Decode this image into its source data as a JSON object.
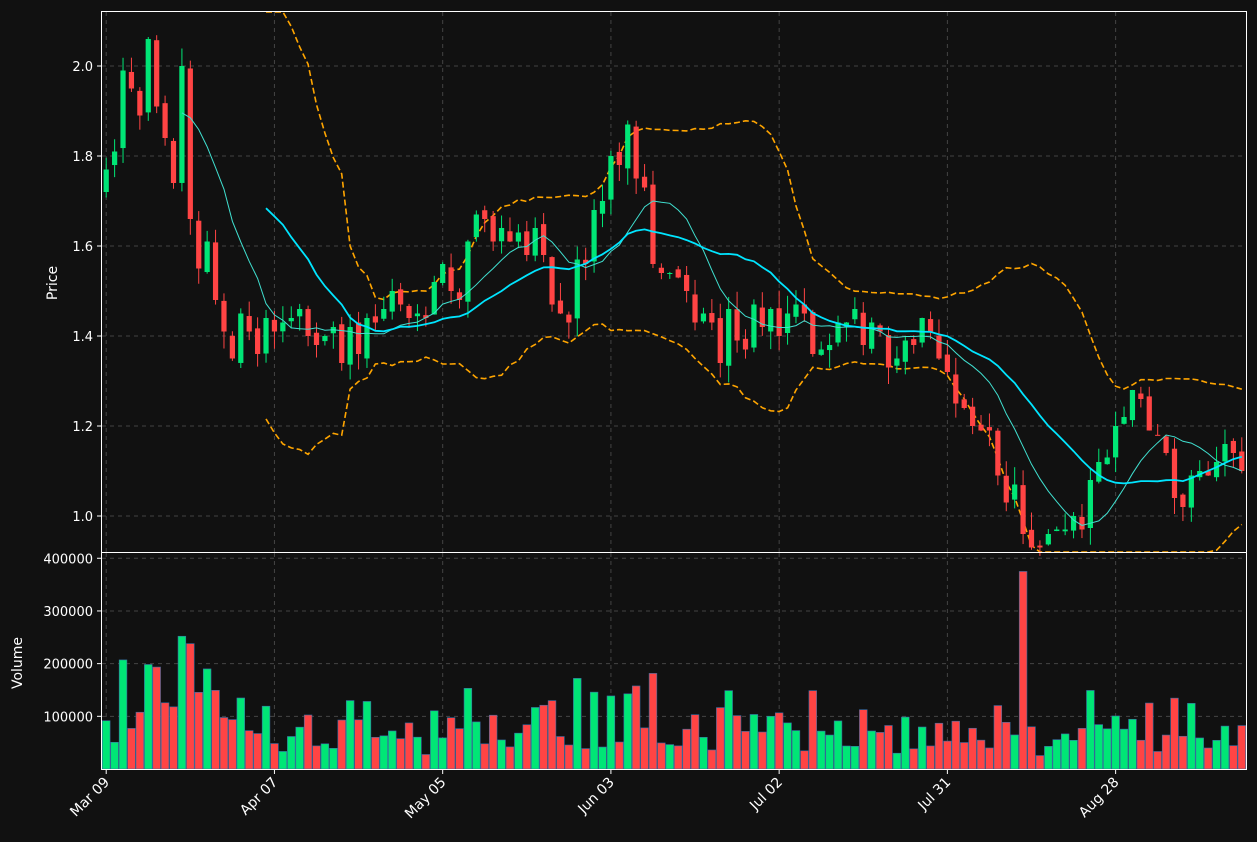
{
  "colors": {
    "background": "#111111",
    "up": "#00e676",
    "down": "#ff4444",
    "ma_short": "#40e0d0",
    "ma_long": "#00e5ff",
    "bollinger": "#ffa500",
    "grid": "#444444",
    "axis": "#ffffff"
  },
  "chart_data": {
    "type": "candlestick",
    "price_panel": {
      "ylabel": "Price",
      "ylim": [
        0.92,
        2.12
      ],
      "yticks": [
        1.0,
        1.2,
        1.4,
        1.6,
        1.8,
        2.0
      ],
      "ytick_labels": [
        "1.0",
        "1.2",
        "1.4",
        "1.6",
        "1.8",
        "2.0"
      ]
    },
    "volume_panel": {
      "ylabel": "Volume",
      "ylim": [
        0,
        410000
      ],
      "yticks": [
        100000,
        200000,
        300000,
        400000
      ],
      "ytick_labels": [
        "100000",
        "200000",
        "300000",
        "400000"
      ]
    },
    "xtick_labels": [
      "Mar 09",
      "Apr 07",
      "May 05",
      "Jun 03",
      "Jul 02",
      "Jul 31",
      "Aug 28"
    ],
    "xtick_indices": [
      0,
      20,
      40,
      60,
      80,
      100,
      120
    ],
    "grid": true,
    "close": [
      1.77,
      1.81,
      1.99,
      1.95,
      1.89,
      2.06,
      1.91,
      1.84,
      1.74,
      2.0,
      1.66,
      1.55,
      1.61,
      1.48,
      1.41,
      1.35,
      1.45,
      1.41,
      1.36,
      1.44,
      1.41,
      1.43,
      1.44,
      1.46,
      1.4,
      1.38,
      1.4,
      1.42,
      1.34,
      1.42,
      1.36,
      1.44,
      1.43,
      1.46,
      1.5,
      1.47,
      1.44,
      1.45,
      1.44,
      1.52,
      1.56,
      1.5,
      1.48,
      1.61,
      1.67,
      1.66,
      1.61,
      1.64,
      1.61,
      1.63,
      1.58,
      1.64,
      1.58,
      1.47,
      1.45,
      1.43,
      1.57,
      1.56,
      1.68,
      1.7,
      1.8,
      1.78,
      1.87,
      1.75,
      1.73,
      1.56,
      1.54,
      1.54,
      1.53,
      1.5,
      1.43,
      1.45,
      1.43,
      1.34,
      1.46,
      1.39,
      1.37,
      1.47,
      1.42,
      1.46,
      1.4,
      1.45,
      1.47,
      1.45,
      1.36,
      1.37,
      1.38,
      1.43,
      1.43,
      1.46,
      1.38,
      1.43,
      1.41,
      1.33,
      1.35,
      1.39,
      1.38,
      1.44,
      1.41,
      1.35,
      1.32,
      1.25,
      1.24,
      1.2,
      1.19,
      1.19,
      1.09,
      1.03,
      1.07,
      0.96,
      0.93,
      0.93,
      0.96,
      0.97,
      0.97,
      1.0,
      0.97,
      1.08,
      1.12,
      1.13,
      1.2,
      1.22,
      1.28,
      1.26,
      1.19,
      1.18,
      1.14,
      1.04,
      1.02,
      1.09,
      1.1,
      1.09,
      1.12,
      1.16,
      1.14,
      1.1
    ]
  },
  "last_updated": ""
}
